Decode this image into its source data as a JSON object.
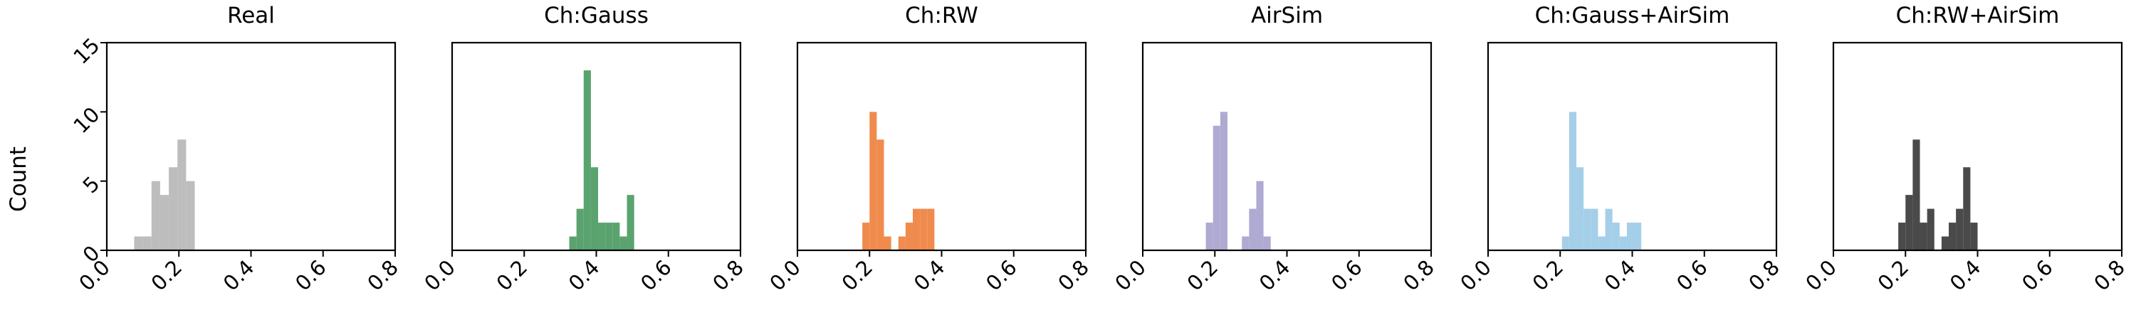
{
  "chart_data": {
    "type": "histogram",
    "shared": {
      "ylabel": "Count",
      "xlim": [
        0.0,
        0.8
      ],
      "ylim": [
        0,
        15
      ],
      "xticks": [
        "0.0",
        "0.2",
        "0.4",
        "0.6",
        "0.8"
      ],
      "yticks": [
        "0",
        "5",
        "10",
        "15"
      ],
      "xtick_values": [
        0.0,
        0.2,
        0.4,
        0.6,
        0.8
      ],
      "ytick_values": [
        0,
        5,
        10,
        15
      ],
      "grid": false
    },
    "panels": [
      {
        "title": "Real",
        "color": "#bdbdbd",
        "bins": [
          {
            "x0": 0.076,
            "x1": 0.1,
            "count": 1
          },
          {
            "x0": 0.1,
            "x1": 0.124,
            "count": 1
          },
          {
            "x0": 0.124,
            "x1": 0.148,
            "count": 5
          },
          {
            "x0": 0.148,
            "x1": 0.172,
            "count": 4
          },
          {
            "x0": 0.172,
            "x1": 0.196,
            "count": 6
          },
          {
            "x0": 0.196,
            "x1": 0.22,
            "count": 8
          },
          {
            "x0": 0.22,
            "x1": 0.244,
            "count": 5
          }
        ]
      },
      {
        "title": "Ch:Gauss",
        "color": "#5aa36f",
        "bins": [
          {
            "x0": 0.325,
            "x1": 0.345,
            "count": 1
          },
          {
            "x0": 0.345,
            "x1": 0.365,
            "count": 3
          },
          {
            "x0": 0.365,
            "x1": 0.385,
            "count": 13
          },
          {
            "x0": 0.385,
            "x1": 0.405,
            "count": 6
          },
          {
            "x0": 0.405,
            "x1": 0.425,
            "count": 2
          },
          {
            "x0": 0.425,
            "x1": 0.445,
            "count": 2
          },
          {
            "x0": 0.445,
            "x1": 0.465,
            "count": 2
          },
          {
            "x0": 0.465,
            "x1": 0.485,
            "count": 1
          },
          {
            "x0": 0.485,
            "x1": 0.505,
            "count": 4
          }
        ]
      },
      {
        "title": "Ch:RW",
        "color": "#f08b4e",
        "bins": [
          {
            "x0": 0.18,
            "x1": 0.2,
            "count": 2
          },
          {
            "x0": 0.2,
            "x1": 0.22,
            "count": 10
          },
          {
            "x0": 0.22,
            "x1": 0.24,
            "count": 8
          },
          {
            "x0": 0.24,
            "x1": 0.26,
            "count": 1
          },
          {
            "x0": 0.26,
            "x1": 0.28,
            "count": 0
          },
          {
            "x0": 0.28,
            "x1": 0.3,
            "count": 1
          },
          {
            "x0": 0.3,
            "x1": 0.32,
            "count": 2
          },
          {
            "x0": 0.32,
            "x1": 0.34,
            "count": 3
          },
          {
            "x0": 0.34,
            "x1": 0.36,
            "count": 3
          },
          {
            "x0": 0.36,
            "x1": 0.38,
            "count": 3
          }
        ]
      },
      {
        "title": "AirSim",
        "color": "#aeaad2",
        "bins": [
          {
            "x0": 0.175,
            "x1": 0.195,
            "count": 2
          },
          {
            "x0": 0.195,
            "x1": 0.215,
            "count": 9
          },
          {
            "x0": 0.215,
            "x1": 0.235,
            "count": 10
          },
          {
            "x0": 0.235,
            "x1": 0.255,
            "count": 0
          },
          {
            "x0": 0.255,
            "x1": 0.275,
            "count": 0
          },
          {
            "x0": 0.275,
            "x1": 0.295,
            "count": 1
          },
          {
            "x0": 0.295,
            "x1": 0.315,
            "count": 3
          },
          {
            "x0": 0.315,
            "x1": 0.335,
            "count": 5
          },
          {
            "x0": 0.335,
            "x1": 0.355,
            "count": 1
          }
        ]
      },
      {
        "title": "Ch:Gauss+AirSim",
        "color": "#a5cfe8",
        "bins": [
          {
            "x0": 0.205,
            "x1": 0.225,
            "count": 1
          },
          {
            "x0": 0.225,
            "x1": 0.245,
            "count": 10
          },
          {
            "x0": 0.245,
            "x1": 0.265,
            "count": 6
          },
          {
            "x0": 0.265,
            "x1": 0.285,
            "count": 3
          },
          {
            "x0": 0.285,
            "x1": 0.305,
            "count": 3
          },
          {
            "x0": 0.305,
            "x1": 0.325,
            "count": 1
          },
          {
            "x0": 0.325,
            "x1": 0.345,
            "count": 3
          },
          {
            "x0": 0.345,
            "x1": 0.365,
            "count": 2
          },
          {
            "x0": 0.365,
            "x1": 0.385,
            "count": 1
          },
          {
            "x0": 0.385,
            "x1": 0.405,
            "count": 2
          },
          {
            "x0": 0.405,
            "x1": 0.425,
            "count": 2
          }
        ]
      },
      {
        "title": "Ch:RW+AirSim",
        "color": "#4a4a4a",
        "bins": [
          {
            "x0": 0.18,
            "x1": 0.2,
            "count": 2
          },
          {
            "x0": 0.2,
            "x1": 0.22,
            "count": 4
          },
          {
            "x0": 0.22,
            "x1": 0.24,
            "count": 8
          },
          {
            "x0": 0.24,
            "x1": 0.26,
            "count": 2
          },
          {
            "x0": 0.26,
            "x1": 0.28,
            "count": 3
          },
          {
            "x0": 0.28,
            "x1": 0.3,
            "count": 0
          },
          {
            "x0": 0.3,
            "x1": 0.32,
            "count": 1
          },
          {
            "x0": 0.32,
            "x1": 0.34,
            "count": 2
          },
          {
            "x0": 0.34,
            "x1": 0.36,
            "count": 3
          },
          {
            "x0": 0.36,
            "x1": 0.38,
            "count": 6
          },
          {
            "x0": 0.38,
            "x1": 0.4,
            "count": 2
          }
        ]
      }
    ]
  }
}
